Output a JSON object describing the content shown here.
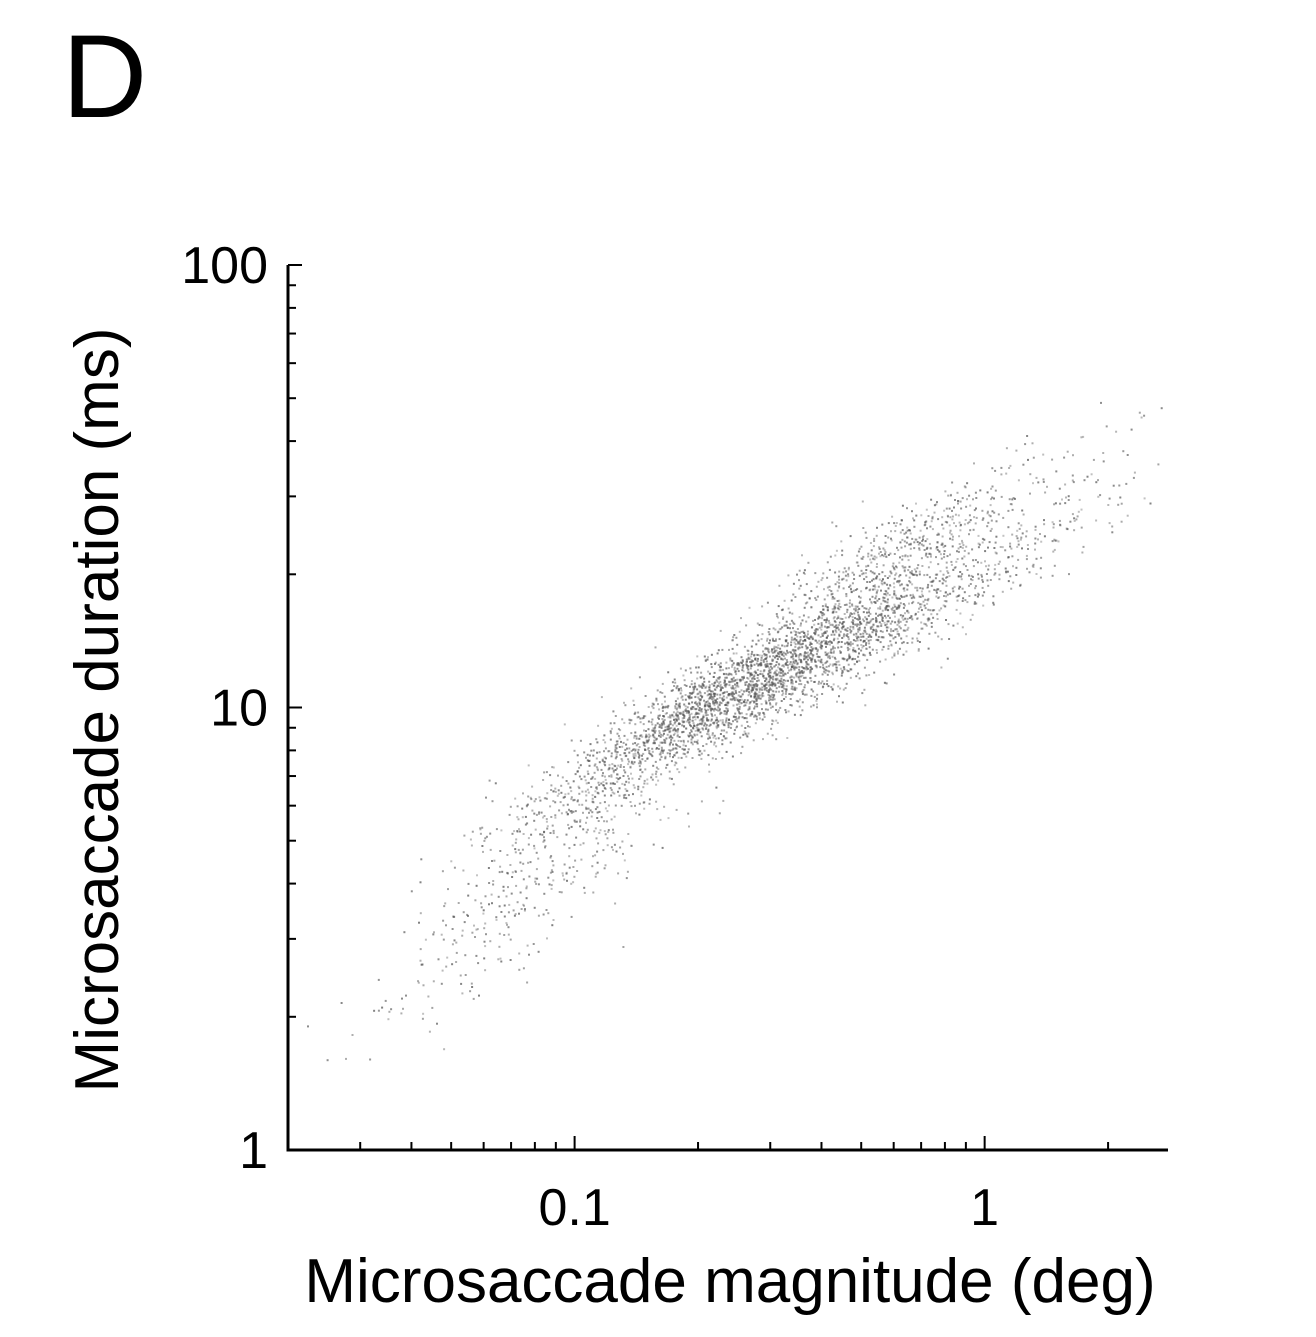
{
  "panel_label": "D",
  "chart_data": {
    "type": "scatter",
    "title": "",
    "xlabel": "Microsaccade magnitude (deg)",
    "ylabel": "Microsaccade duration (ms)",
    "x_scale": "log",
    "y_scale": "log",
    "xlim": [
      0.02,
      2.8
    ],
    "ylim": [
      1,
      100
    ],
    "x_ticks": [
      {
        "value": 0.1,
        "label": "0.1"
      },
      {
        "value": 1,
        "label": "1"
      }
    ],
    "y_ticks": [
      {
        "value": 1,
        "label": "1"
      },
      {
        "value": 10,
        "label": "10"
      },
      {
        "value": 100,
        "label": "100"
      }
    ],
    "grid": false,
    "point_color": "#555555",
    "density_summary": [
      {
        "x": 0.2,
        "y": 10,
        "relative_density": 1.0
      },
      {
        "x": 0.3,
        "y": 12,
        "relative_density": 1.0
      },
      {
        "x": 0.45,
        "y": 14,
        "relative_density": 0.9
      },
      {
        "x": 0.12,
        "y": 7,
        "relative_density": 0.5
      },
      {
        "x": 0.6,
        "y": 22,
        "relative_density": 0.6
      },
      {
        "x": 0.08,
        "y": 4,
        "relative_density": 0.25
      },
      {
        "x": 1.0,
        "y": 20,
        "relative_density": 0.3
      },
      {
        "x": 0.05,
        "y": 2.5,
        "relative_density": 0.08
      },
      {
        "x": 1.8,
        "y": 35,
        "relative_density": 0.05
      }
    ]
  }
}
